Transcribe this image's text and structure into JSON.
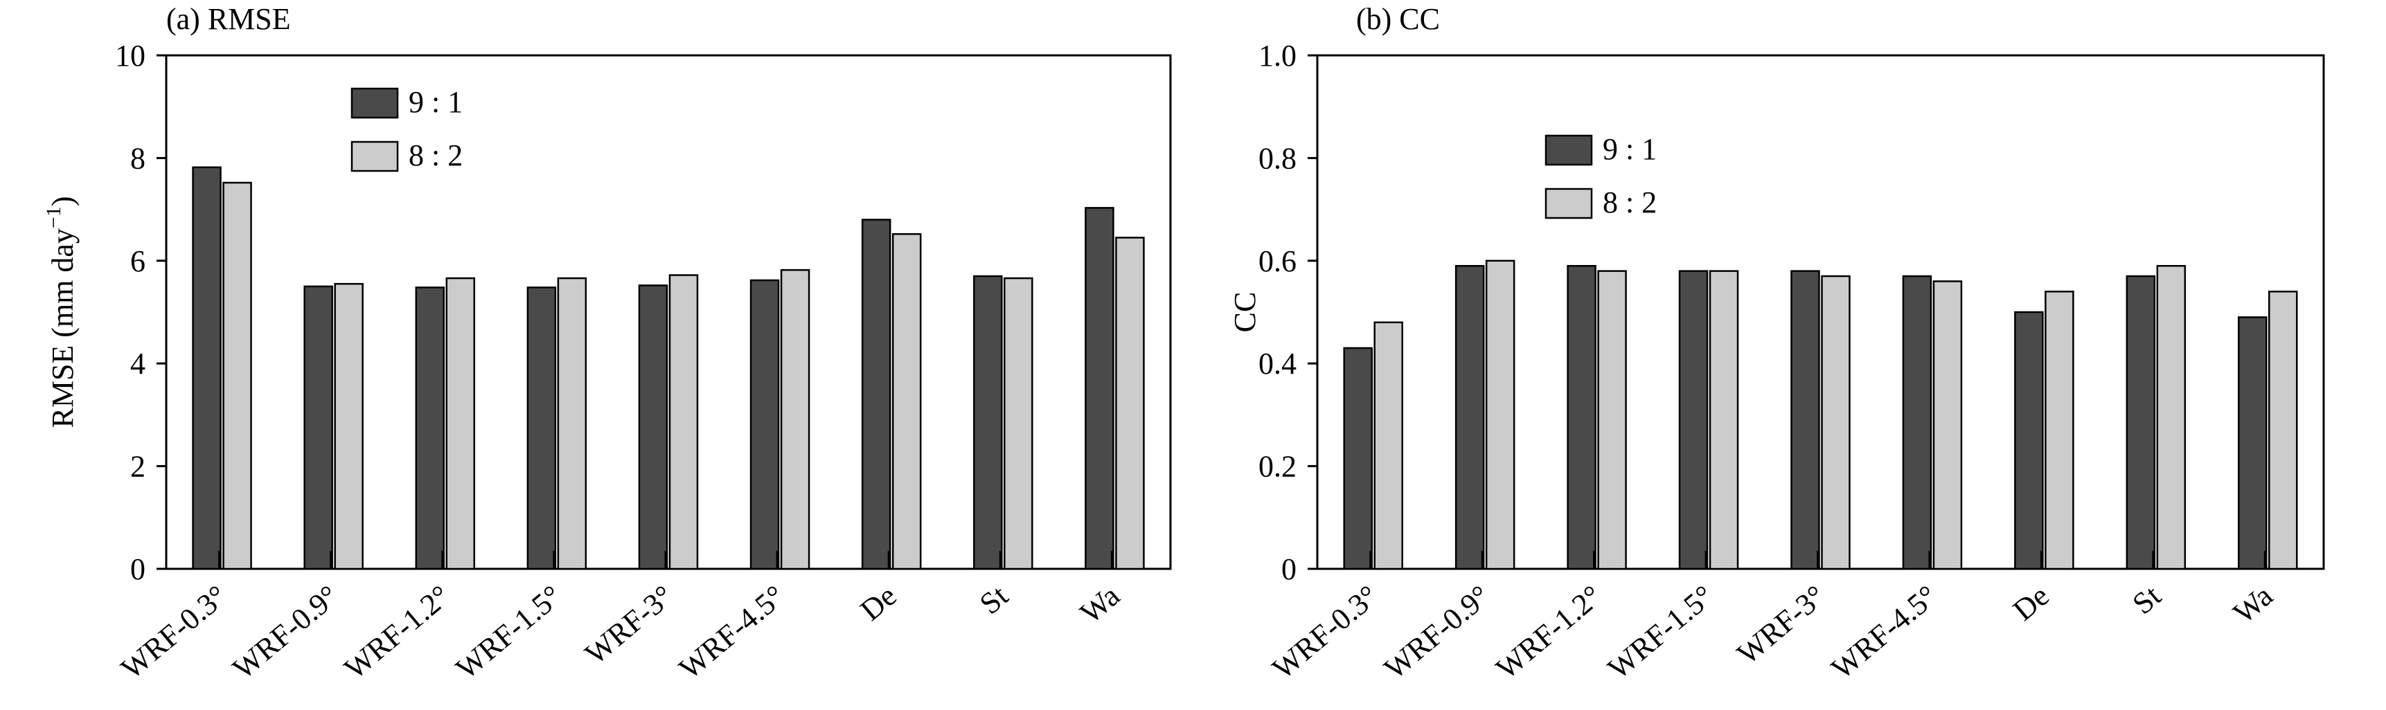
{
  "chart_data": [
    {
      "type": "bar",
      "title": "(a) RMSE",
      "xlabel": "",
      "ylabel": "RMSE (mm day",
      "ylabel_sup": "−1",
      "ylabel_close": ")",
      "ylim": [
        0,
        10
      ],
      "yticks": [
        "0",
        "2",
        "4",
        "6",
        "8",
        "10"
      ],
      "categories": [
        "WRF-0.3°",
        "WRF-0.9°",
        "WRF-1.2°",
        "WRF-1.5°",
        "WRF-3°",
        "WRF-4.5°",
        "De",
        "St",
        "Wa"
      ],
      "series": [
        {
          "name": "9 : 1",
          "color": "#4a4a4a",
          "values": [
            7.82,
            5.5,
            5.48,
            5.48,
            5.52,
            5.62,
            6.8,
            5.7,
            7.03
          ]
        },
        {
          "name": "8 : 2",
          "color": "#cccccc",
          "values": [
            7.52,
            5.55,
            5.66,
            5.66,
            5.72,
            5.82,
            6.52,
            5.66,
            6.45
          ]
        }
      ],
      "legend": "top-left",
      "grid": false
    },
    {
      "type": "bar",
      "title": "(b) CC",
      "xlabel": "",
      "ylabel": "CC",
      "ylim": [
        0,
        1.0
      ],
      "yticks": [
        "0",
        "0.2",
        "0.4",
        "0.6",
        "0.8",
        "1.0"
      ],
      "categories": [
        "WRF-0.3°",
        "WRF-0.9°",
        "WRF-1.2°",
        "WRF-1.5°",
        "WRF-3°",
        "WRF-4.5°",
        "De",
        "St",
        "Wa"
      ],
      "series": [
        {
          "name": "9 : 1",
          "color": "#4a4a4a",
          "values": [
            0.43,
            0.59,
            0.59,
            0.58,
            0.58,
            0.57,
            0.5,
            0.57,
            0.49
          ]
        },
        {
          "name": "8 : 2",
          "color": "#cccccc",
          "values": [
            0.48,
            0.6,
            0.58,
            0.58,
            0.57,
            0.56,
            0.54,
            0.59,
            0.54
          ]
        }
      ],
      "legend": "top-left",
      "grid": false
    }
  ]
}
